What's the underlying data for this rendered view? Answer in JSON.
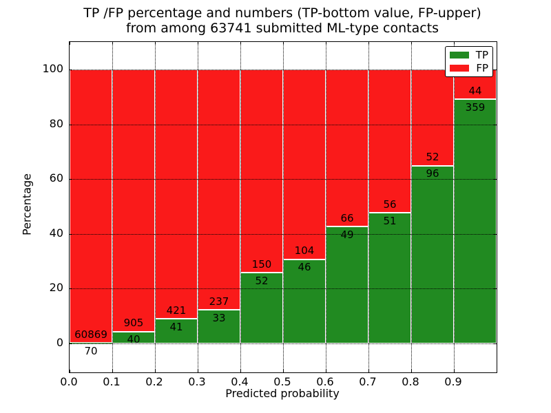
{
  "figure": {
    "title_line1": "TP /FP percentage and numbers (TP-bottom value, FP-upper)",
    "title_line2": "from among 63741 submitted ML-type contacts"
  },
  "axes": {
    "xlabel": "Predicted probability",
    "ylabel": "Percentage",
    "yticks": [
      0,
      20,
      40,
      60,
      80,
      100
    ],
    "xtick_labels": [
      "0.0",
      "0.1",
      "0.2",
      "0.3",
      "0.4",
      "0.5",
      "0.6",
      "0.7",
      "0.8",
      "0.9"
    ],
    "grid_style": "dotted"
  },
  "legend": {
    "items": [
      {
        "label": "TP",
        "color": "#218a21"
      },
      {
        "label": "FP",
        "color": "#fa1a1a"
      }
    ]
  },
  "chart_data": {
    "type": "bar",
    "subtype": "stacked-percentage-histogram",
    "title": "TP /FP percentage and numbers (TP-bottom value, FP-upper) from among 63741 submitted ML-type contacts",
    "xlabel": "Predicted probability",
    "ylabel": "Percentage",
    "total_contacts": 63741,
    "bin_starts": [
      0.0,
      0.1,
      0.2,
      0.3,
      0.4,
      0.5,
      0.6,
      0.7,
      0.8,
      0.9
    ],
    "bin_width": 0.1,
    "xlim": [
      0.0,
      1.0
    ],
    "ylim": [
      0,
      100
    ],
    "grid": true,
    "legend_position": "upper right",
    "series": [
      {
        "name": "TP",
        "position": "bottom",
        "color": "#218a21",
        "counts": [
          70,
          40,
          41,
          33,
          52,
          46,
          49,
          51,
          96,
          359
        ]
      },
      {
        "name": "FP",
        "position": "top",
        "color": "#fa1a1a",
        "counts": [
          60869,
          905,
          421,
          237,
          150,
          104,
          66,
          56,
          52,
          44
        ]
      }
    ],
    "tp_percent": [
      0.11,
      4.23,
      8.87,
      12.22,
      25.74,
      30.67,
      42.61,
      47.66,
      64.86,
      89.08
    ]
  }
}
